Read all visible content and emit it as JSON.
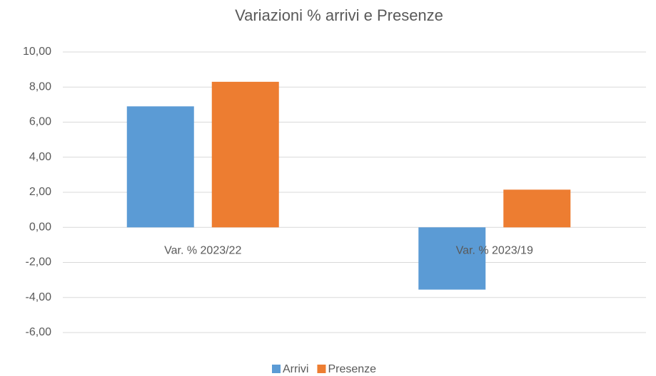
{
  "chart_data": {
    "type": "bar",
    "title": "Variazioni % arrivi e Presenze",
    "categories": [
      "Var. % 2023/22",
      "Var. % 2023/19"
    ],
    "series": [
      {
        "name": "Arrivi",
        "color": "#5b9bd5",
        "values": [
          6.9,
          -3.55
        ]
      },
      {
        "name": "Presenze",
        "color": "#ed7d31",
        "values": [
          8.3,
          2.15
        ]
      }
    ],
    "ylim": [
      -6,
      10
    ],
    "yticks": [
      {
        "value": -6,
        "label": "-6,00"
      },
      {
        "value": -4,
        "label": "-4,00"
      },
      {
        "value": -2,
        "label": "-2,00"
      },
      {
        "value": 0,
        "label": "0,00"
      },
      {
        "value": 2,
        "label": "2,00"
      },
      {
        "value": 4,
        "label": "4,00"
      },
      {
        "value": 6,
        "label": "6,00"
      },
      {
        "value": 8,
        "label": "8,00"
      },
      {
        "value": 10,
        "label": "10,00"
      }
    ],
    "grid": true,
    "legend": "bottom"
  }
}
